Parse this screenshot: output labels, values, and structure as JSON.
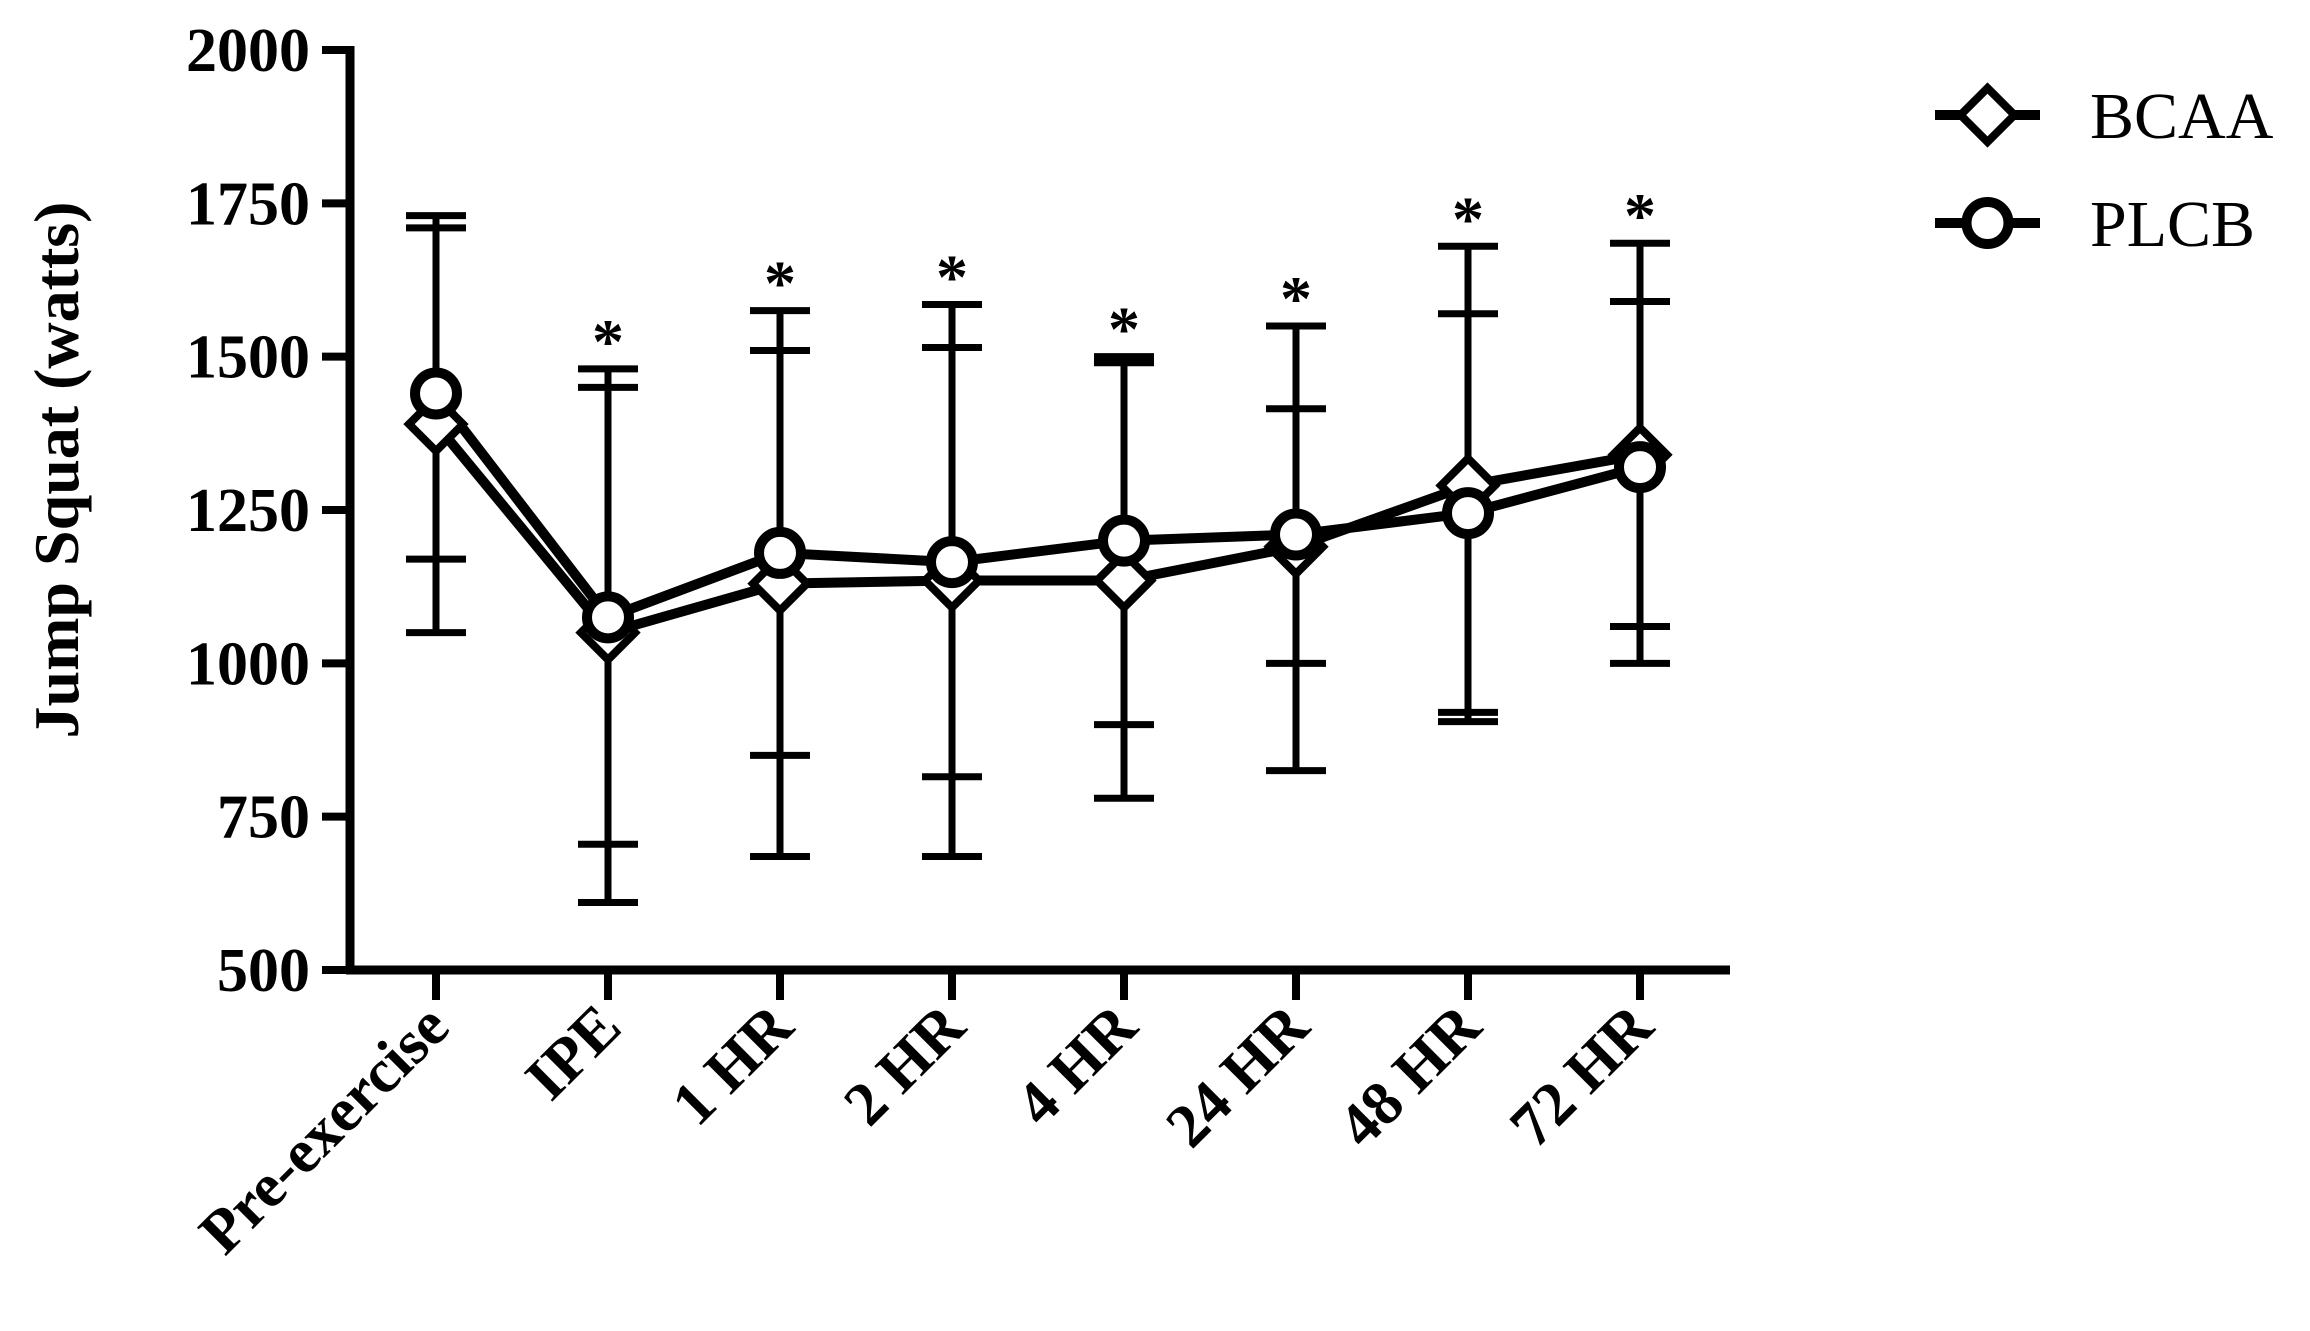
{
  "chart_data": {
    "type": "line",
    "title": "",
    "xlabel": "",
    "ylabel": "Jump Squat (watts)",
    "ylim": [
      500,
      2000
    ],
    "yticks": [
      500,
      750,
      1000,
      1250,
      1500,
      1750,
      2000
    ],
    "categories": [
      "Pre-exercise",
      "IPE",
      "1 HR",
      "2 HR",
      "4 HR",
      "24 HR",
      "48 HR",
      "72 HR"
    ],
    "grid": false,
    "legend_position": "top-right",
    "significance_marks": [
      "",
      "*",
      "*",
      "*",
      "*",
      "*",
      "*",
      "*"
    ],
    "series": [
      {
        "name": "BCAA",
        "marker": "diamond",
        "values": [
          1390,
          1050,
          1130,
          1135,
          1135,
          1190,
          1290,
          1340
        ],
        "error_low": [
          1050,
          610,
          685,
          685,
          780,
          825,
          905,
          1000
        ],
        "error_high": [
          1730,
          1480,
          1575,
          1585,
          1490,
          1550,
          1680,
          1685
        ]
      },
      {
        "name": "PLCB",
        "marker": "circle",
        "values": [
          1440,
          1075,
          1180,
          1165,
          1200,
          1210,
          1245,
          1320
        ],
        "error_low": [
          1170,
          705,
          850,
          815,
          900,
          1000,
          920,
          1060
        ],
        "error_high": [
          1710,
          1450,
          1510,
          1515,
          1500,
          1415,
          1570,
          1590
        ]
      }
    ]
  }
}
